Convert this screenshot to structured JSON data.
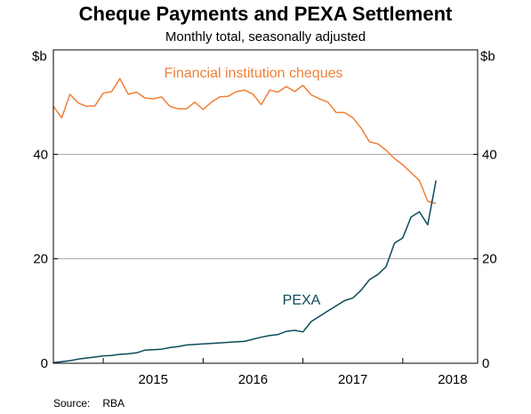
{
  "title": "Cheque Payments and PEXA Settlement",
  "subtitle": "Monthly total, seasonally adjusted",
  "unit_left": "$b",
  "unit_right": "$b",
  "source_label": "Source:",
  "source_value": "RBA",
  "colors": {
    "cheques": "#f07f35",
    "pexa": "#0b4a5a",
    "grid": "#a6a6a6"
  },
  "chart_data": {
    "type": "line",
    "title": "Cheque Payments and PEXA Settlement",
    "subtitle": "Monthly total, seasonally adjusted",
    "xlabel": "",
    "ylabel": "$b",
    "ylim": [
      0,
      60
    ],
    "xlim": [
      "2014-07",
      "2018-10"
    ],
    "grid": true,
    "yticks": [
      0,
      20,
      40
    ],
    "ytick_labels": [
      "0",
      "20",
      "40"
    ],
    "xtick_labels": [
      "2015",
      "2016",
      "2017",
      "2018"
    ],
    "x": [
      "2014-07",
      "2014-08",
      "2014-09",
      "2014-10",
      "2014-11",
      "2014-12",
      "2015-01",
      "2015-02",
      "2015-03",
      "2015-04",
      "2015-05",
      "2015-06",
      "2015-07",
      "2015-08",
      "2015-09",
      "2015-10",
      "2015-11",
      "2015-12",
      "2016-01",
      "2016-02",
      "2016-03",
      "2016-04",
      "2016-05",
      "2016-06",
      "2016-07",
      "2016-08",
      "2016-09",
      "2016-10",
      "2016-11",
      "2016-12",
      "2017-01",
      "2017-02",
      "2017-03",
      "2017-04",
      "2017-05",
      "2017-06",
      "2017-07",
      "2017-08",
      "2017-09",
      "2017-10",
      "2017-11",
      "2017-12",
      "2018-01",
      "2018-02",
      "2018-03",
      "2018-04",
      "2018-05"
    ],
    "series": [
      {
        "name": "Financial institution cheques",
        "values": [
          49.2,
          47.0,
          51.5,
          49.8,
          49.2,
          49.3,
          51.7,
          52.0,
          54.5,
          51.5,
          51.9,
          50.8,
          50.6,
          51.0,
          49.2,
          48.7,
          48.7,
          50.0,
          48.6,
          50.0,
          51.0,
          51.1,
          52.0,
          52.3,
          51.5,
          49.5,
          52.3,
          51.9,
          53.0,
          52.0,
          53.2,
          51.4,
          50.6,
          50.0,
          48.0,
          48.0,
          47.0,
          45.0,
          42.4,
          42.0,
          40.8,
          39.2,
          38.0,
          36.5,
          35.0,
          31.0,
          30.6
        ],
        "label_position": "top-center"
      },
      {
        "name": "PEXA",
        "values": [
          0.1,
          0.3,
          0.5,
          0.8,
          1.0,
          1.2,
          1.4,
          1.5,
          1.7,
          1.8,
          2.0,
          2.5,
          2.6,
          2.7,
          3.0,
          3.2,
          3.5,
          3.6,
          3.7,
          3.8,
          3.9,
          4.0,
          4.1,
          4.2,
          4.6,
          5.0,
          5.3,
          5.5,
          6.1,
          6.3,
          6.0,
          8.0,
          9.0,
          10.0,
          11.0,
          12.0,
          12.5,
          14.0,
          16.0,
          17.0,
          18.5,
          23.0,
          24.0,
          28.0,
          29.0,
          26.5,
          35.0
        ],
        "label_position": "center"
      }
    ]
  }
}
